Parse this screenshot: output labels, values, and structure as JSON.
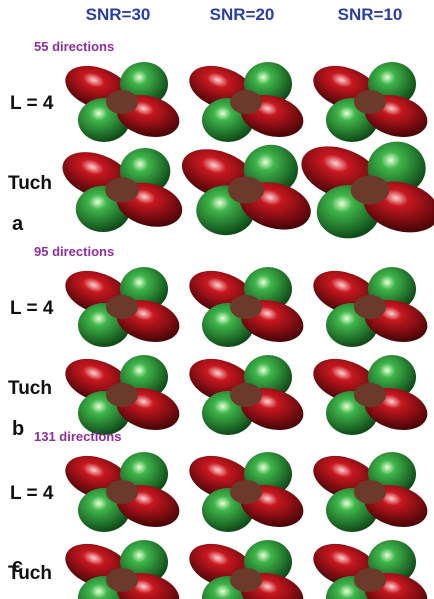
{
  "columns": [
    "SNR=30",
    "SNR=20",
    "SNR=10"
  ],
  "panels": [
    {
      "directions": "55 directions",
      "rows": [
        "L = 4",
        "Tuch"
      ],
      "letter": "a"
    },
    {
      "directions": "95 directions",
      "rows": [
        "L = 4",
        "Tuch"
      ],
      "letter": "b"
    },
    {
      "directions": "131 directions",
      "rows": [
        "L = 4",
        "Tuch"
      ],
      "letter": "c"
    }
  ]
}
